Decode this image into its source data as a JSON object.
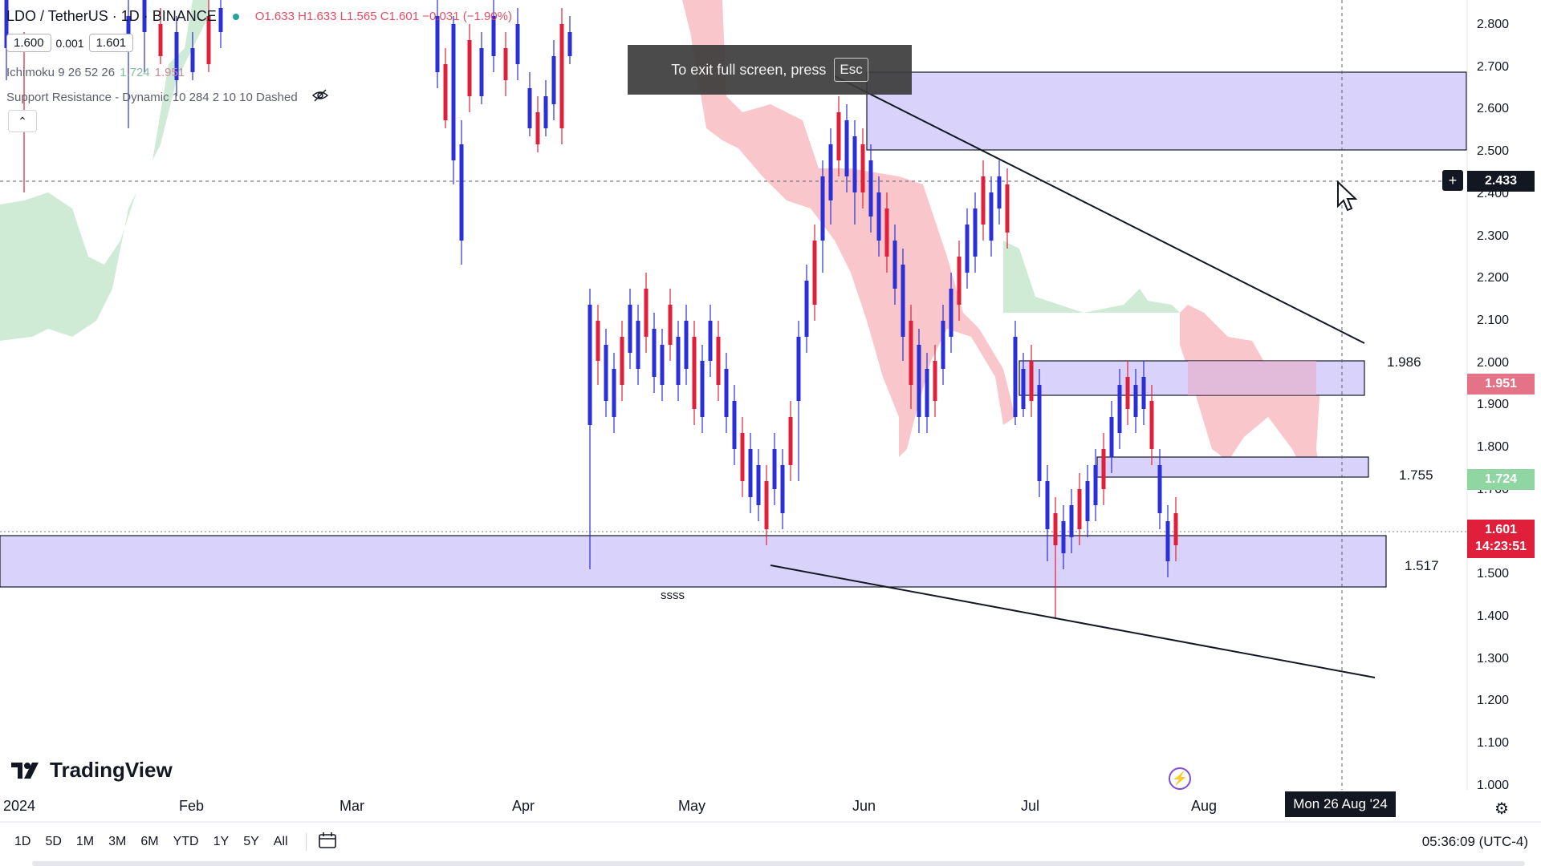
{
  "header": {
    "symbol": "LDO / TetherUS · 1D · BINANCE",
    "ohlc": "O1.633 H1.633 L1.565 C1.601 −0.031 (−1.90%)",
    "bid": "1.600",
    "spread": "0.001",
    "ask": "1.601"
  },
  "indicators": {
    "ichimoku_name": "Ichimoku 9 26 52 26",
    "ichimoku_v1": "1.724",
    "ichimoku_v2": "1.951",
    "sr_name": "Support Resistance - Dynamic 10 284 2 10 10 Dashed"
  },
  "toast": {
    "text": "To exit full screen, press",
    "key": "Esc"
  },
  "price_axis": {
    "ticks": [
      "2.800",
      "2.700",
      "2.600",
      "2.500",
      "2.400",
      "2.300",
      "2.200",
      "2.100",
      "2.000",
      "1.900",
      "1.800",
      "1.700",
      "1.600",
      "1.500",
      "1.400",
      "1.300",
      "1.200",
      "1.100",
      "1.000"
    ],
    "crosshair_price": "2.433",
    "ichimoku_tag": "1.951",
    "ichimoku_tag2": "1.724",
    "last_price": "1.601",
    "countdown": "14:23:51"
  },
  "zone_labels": [
    "1.986",
    "1.755",
    "1.517"
  ],
  "annotation": "ssss",
  "time_axis": {
    "labels": [
      "2024",
      "Feb",
      "Mar",
      "Apr",
      "May",
      "Jun",
      "Jul",
      "Aug"
    ],
    "crosshair_date": "Mon 26 Aug '24"
  },
  "branding": {
    "logo_text": "TradingView"
  },
  "bottom_bar": {
    "timeframes": [
      "1D",
      "5D",
      "1M",
      "3M",
      "6M",
      "YTD",
      "1Y",
      "5Y",
      "All"
    ],
    "clock": "05:36:09 (UTC-4)"
  },
  "colors": {
    "up": "#2b2fd6",
    "down": "#e0203a",
    "zone": "#d9d2fb",
    "kumo_bear": "#f9c6cc",
    "kumo_bull": "#bfe6c8"
  }
}
